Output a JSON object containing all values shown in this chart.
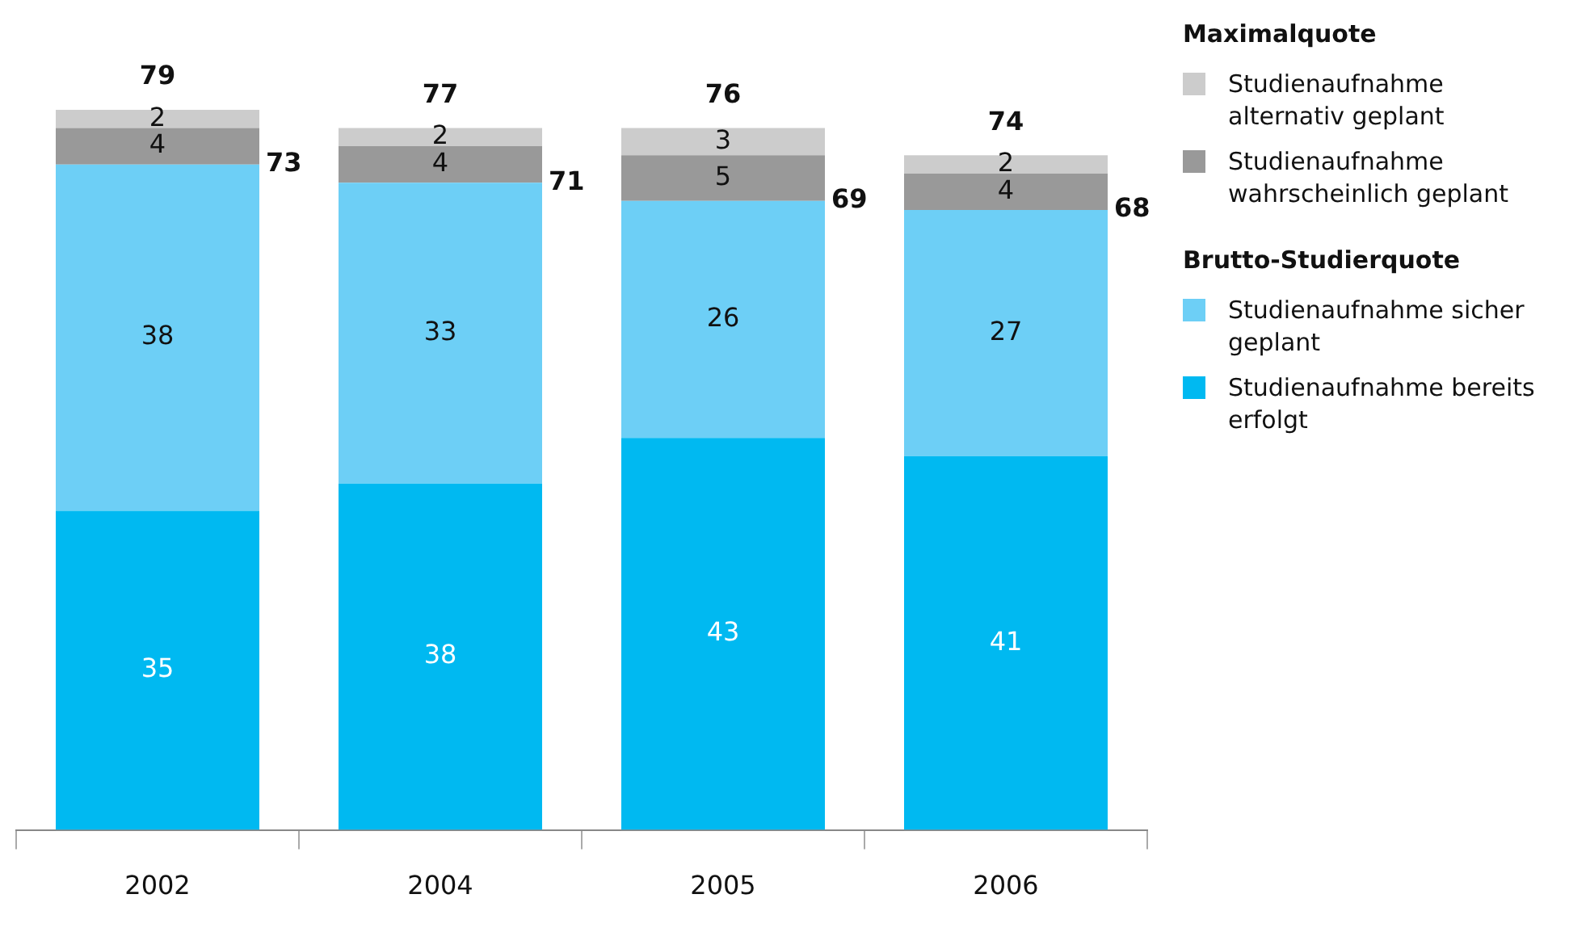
{
  "chart_data": {
    "type": "bar",
    "stacked": true,
    "data_labels": true,
    "legend": "right",
    "grid": false,
    "categories": [
      "2002",
      "2004",
      "2005",
      "2006"
    ],
    "series": [
      {
        "name": "Studienaufnahme bereits erfolgt",
        "color": "#00b9f1",
        "values": [
          35,
          38,
          43,
          41
        ]
      },
      {
        "name": "Studienaufnahme sicher geplant",
        "color": "#6dcff6",
        "values": [
          38,
          33,
          26,
          27
        ]
      },
      {
        "name": "Studienaufnahme wahrscheinlich geplant",
        "color": "#999999",
        "values": [
          4,
          4,
          5,
          4
        ]
      },
      {
        "name": "Studienaufnahme alternativ geplant",
        "color": "#cccccc",
        "values": [
          2,
          2,
          3,
          2
        ]
      }
    ],
    "totals": [
      "79",
      "77",
      "76",
      "74"
    ],
    "annotations": [
      "73",
      "71",
      "69",
      "68",
      "Maximalquote",
      "Brutto-Studierquote"
    ]
  }
}
